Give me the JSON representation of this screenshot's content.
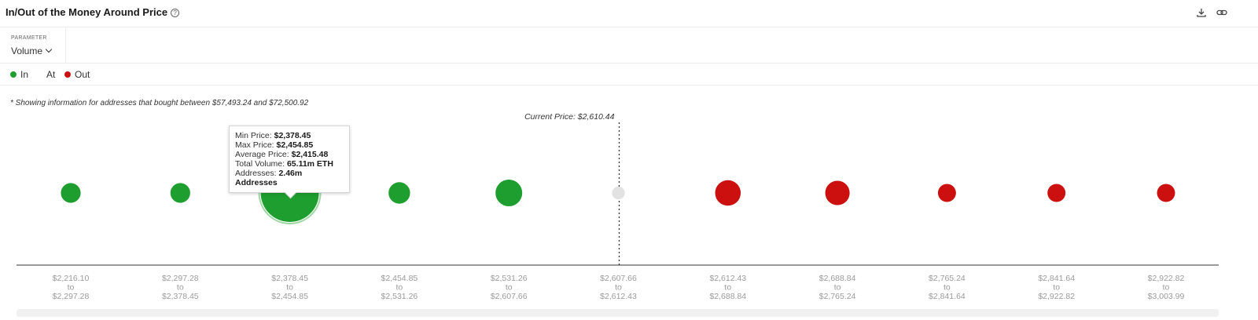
{
  "header": {
    "title": "In/Out of the Money Around Price",
    "help_icon": "question-circle-icon",
    "download_icon": "download-icon",
    "link_icon": "link-icon"
  },
  "parameter": {
    "label": "PARAMETER",
    "value": "Volume"
  },
  "legend": [
    {
      "label": "In",
      "color": "#1e9e2f"
    },
    {
      "label": "At",
      "color": ""
    },
    {
      "label": "Out",
      "color": "#cc0f0f"
    }
  ],
  "note": "* Showing information for addresses that bought between $57,493.24 and $72,500.92",
  "tooltip": {
    "rows": [
      {
        "label": "Min Price:",
        "value": "$2,378.45"
      },
      {
        "label": "Max Price:",
        "value": "$2,454.85"
      },
      {
        "label": "Average Price:",
        "value": "$2,415.48"
      },
      {
        "label": "Total Volume:",
        "value": "65.11m ETH"
      },
      {
        "label": "Addresses:",
        "value": "2.46m Addresses"
      }
    ]
  },
  "chart_data": {
    "type": "scatter",
    "current_price_label": "Current Price: $2,610.44",
    "current_index": 5,
    "colors": {
      "in": "#1e9e2f",
      "at": "#e2e2e2",
      "out": "#cc0f0f"
    },
    "buckets": [
      {
        "from": "$2,216.10",
        "to": "$2,297.28",
        "status": "in",
        "relative_size": 0.34
      },
      {
        "from": "$2,297.28",
        "to": "$2,378.45",
        "status": "in",
        "relative_size": 0.34
      },
      {
        "from": "$2,378.45",
        "to": "$2,454.85",
        "status": "in",
        "relative_size": 1.0
      },
      {
        "from": "$2,454.85",
        "to": "$2,531.26",
        "status": "in",
        "relative_size": 0.37
      },
      {
        "from": "$2,531.26",
        "to": "$2,607.66",
        "status": "in",
        "relative_size": 0.46
      },
      {
        "from": "$2,607.66",
        "to": "$2,612.43",
        "status": "at",
        "relative_size": 0.22
      },
      {
        "from": "$2,612.43",
        "to": "$2,688.84",
        "status": "out",
        "relative_size": 0.44
      },
      {
        "from": "$2,688.84",
        "to": "$2,765.24",
        "status": "out",
        "relative_size": 0.42
      },
      {
        "from": "$2,765.24",
        "to": "$2,841.64",
        "status": "out",
        "relative_size": 0.31
      },
      {
        "from": "$2,841.64",
        "to": "$2,922.82",
        "status": "out",
        "relative_size": 0.31
      },
      {
        "from": "$2,922.82",
        "to": "$3,003.99",
        "status": "out",
        "relative_size": 0.31
      }
    ],
    "to_word": "to"
  }
}
